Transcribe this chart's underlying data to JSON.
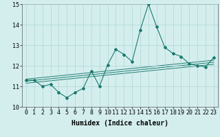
{
  "xlabel": "Humidex (Indice chaleur)",
  "ylabel": "",
  "x": [
    0,
    1,
    2,
    3,
    4,
    5,
    6,
    7,
    8,
    9,
    10,
    11,
    12,
    13,
    14,
    15,
    16,
    17,
    18,
    19,
    20,
    21,
    22,
    23
  ],
  "y_main": [
    11.3,
    11.3,
    11.0,
    11.1,
    10.7,
    10.45,
    10.7,
    10.9,
    11.75,
    11.0,
    12.05,
    12.8,
    12.55,
    12.2,
    13.75,
    15.0,
    13.9,
    12.9,
    12.6,
    12.45,
    12.1,
    12.0,
    11.95,
    12.4
  ],
  "y_band1": [
    11.15,
    11.19,
    11.23,
    11.27,
    11.31,
    11.35,
    11.39,
    11.43,
    11.47,
    11.51,
    11.55,
    11.59,
    11.63,
    11.67,
    11.71,
    11.75,
    11.79,
    11.83,
    11.87,
    11.91,
    11.95,
    11.99,
    12.03,
    12.07
  ],
  "y_band2": [
    11.25,
    11.29,
    11.33,
    11.37,
    11.41,
    11.45,
    11.49,
    11.53,
    11.57,
    11.61,
    11.65,
    11.69,
    11.73,
    11.77,
    11.81,
    11.85,
    11.89,
    11.93,
    11.97,
    12.01,
    12.05,
    12.09,
    12.13,
    12.17
  ],
  "y_band3": [
    11.35,
    11.39,
    11.43,
    11.47,
    11.51,
    11.55,
    11.59,
    11.63,
    11.67,
    11.71,
    11.75,
    11.79,
    11.83,
    11.87,
    11.91,
    11.95,
    11.99,
    12.03,
    12.07,
    12.11,
    12.15,
    12.19,
    12.23,
    12.27
  ],
  "ylim": [
    10,
    15
  ],
  "yticks": [
    10,
    11,
    12,
    13,
    14,
    15
  ],
  "xticks": [
    0,
    1,
    2,
    3,
    4,
    5,
    6,
    7,
    8,
    9,
    10,
    11,
    12,
    13,
    14,
    15,
    16,
    17,
    18,
    19,
    20,
    21,
    22,
    23
  ],
  "line_color": "#1a7a6e",
  "bg_color": "#d4eeee",
  "grid_color": "#b0d4d4",
  "tick_fontsize": 6,
  "label_fontsize": 7,
  "marker": "D",
  "marker_size": 2.0
}
